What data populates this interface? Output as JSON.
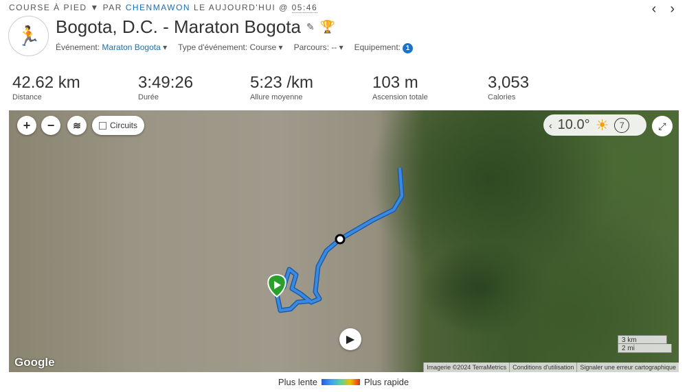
{
  "header": {
    "activity_type": "COURSE À PIED",
    "by": "PAR",
    "user": "CHENMAWON",
    "when": "LE AUJOURD'HUI @",
    "time": "05:46",
    "title": "Bogota, D.C. - Maraton Bogota",
    "event_label": "Événement:",
    "event_value": "Maraton Bogota",
    "event_type_label": "Type d'événement:",
    "event_type_value": "Course",
    "course_label": "Parcours:",
    "course_value": "--",
    "gear_label": "Equipement:",
    "gear_count": "1"
  },
  "stats": [
    {
      "value": "42.62 km",
      "label": "Distance"
    },
    {
      "value": "3:49:26",
      "label": "Durée"
    },
    {
      "value": "5:23 /km",
      "label": "Allure moyenne"
    },
    {
      "value": "103 m",
      "label": "Ascension totale"
    },
    {
      "value": "3,053",
      "label": "Calories"
    }
  ],
  "map": {
    "circuits_label": "Circuits",
    "temperature": "10.0°",
    "wind": "7",
    "scale_km": "3 km",
    "scale_mi": "2 mi",
    "google": "Google",
    "attribution": [
      "Imagerie ©2024 TerraMetrics",
      "Conditions d'utilisation",
      "Signaler une erreur cartographique"
    ],
    "route_color": "#3a8be0"
  },
  "legend": {
    "slow": "Plus lente",
    "fast": "Plus rapide"
  }
}
